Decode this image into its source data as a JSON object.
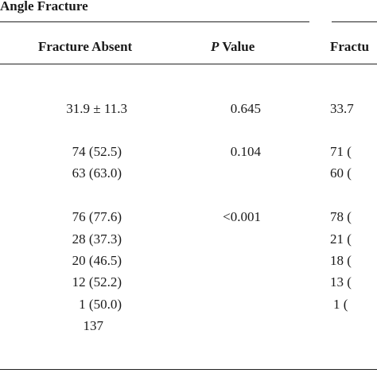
{
  "group_title": "Angle Fracture",
  "columns": {
    "fracture_absent": "Fracture Absent",
    "p_value_italic": "P",
    "p_value_rest": " Value",
    "fracture_present_partial": "Fractu"
  },
  "rows": [
    {
      "absent": "31.9 ± 11.3",
      "p": "0.645",
      "present": "33.7"
    },
    {
      "absent": "74 (52.5)",
      "p": "0.104",
      "present": "71 ("
    },
    {
      "absent": "63 (63.0)",
      "p": "",
      "present": "60 ("
    },
    {
      "absent": "76 (77.6)",
      "p": "<0.001",
      "present": "78 ("
    },
    {
      "absent": "28 (37.3)",
      "p": "",
      "present": "21 ("
    },
    {
      "absent": "20 (46.5)",
      "p": "",
      "present": "18 ("
    },
    {
      "absent": "12 (52.2)",
      "p": "",
      "present": "13 ("
    },
    {
      "absent": "1 (50.0)",
      "p": "",
      "present": "1 ("
    },
    {
      "absent": "137",
      "p": "",
      "present": ""
    }
  ]
}
